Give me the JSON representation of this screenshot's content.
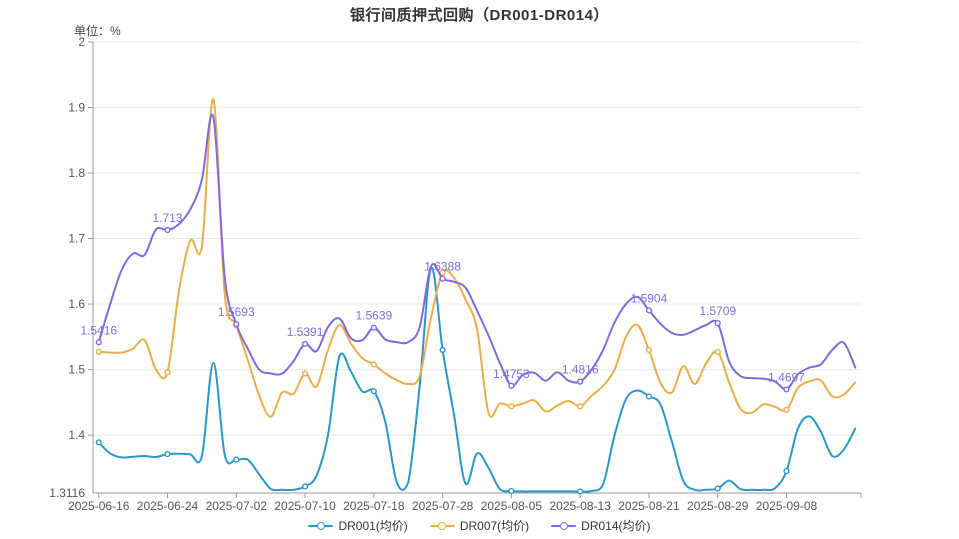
{
  "chart_data": {
    "type": "line",
    "title": "银行间质押式回购（DR001-DR014）",
    "unit": "单位：%",
    "ylim": [
      1.3116,
      2
    ],
    "y_tick_labels": [
      "2",
      "1.9",
      "1.8",
      "1.7",
      "1.6",
      "1.5",
      "1.4"
    ],
    "y_tick_values": [
      2,
      1.9,
      1.8,
      1.7,
      1.6,
      1.5,
      1.4
    ],
    "y_min_label": "1.3116",
    "x_tick_labels": [
      "2025-06-16",
      "2025-06-24",
      "2025-07-02",
      "2025-07-10",
      "2025-07-18",
      "2025-07-28",
      "2025-08-05",
      "2025-08-13",
      "2025-08-21",
      "2025-08-29",
      "2025-09-08"
    ],
    "x_tick_indices": [
      0,
      6,
      12,
      18,
      24,
      30,
      36,
      42,
      48,
      54,
      60
    ],
    "marker_interval": 6,
    "grid_color": "#E8E8E8",
    "axis_color": "#999999",
    "tick_text_color": "#555555",
    "label_color": "#7F6CE0",
    "legend_position": "bottom",
    "series": [
      {
        "name": "DR001(均价)",
        "color": "#2B97C8",
        "values": [
          1.389,
          1.372,
          1.366,
          1.367,
          1.368,
          1.3665,
          1.371,
          1.3715,
          1.3705,
          1.368,
          1.51,
          1.3695,
          1.3625,
          1.3625,
          1.34,
          1.318,
          1.3165,
          1.3165,
          1.3215,
          1.338,
          1.4,
          1.52,
          1.497,
          1.4665,
          1.467,
          1.42,
          1.328,
          1.328,
          1.475,
          1.655,
          1.53,
          1.43,
          1.326,
          1.372,
          1.35,
          1.3175,
          1.3145,
          1.314,
          1.314,
          1.314,
          1.314,
          1.314,
          1.314,
          1.3145,
          1.325,
          1.4,
          1.455,
          1.468,
          1.459,
          1.447,
          1.39,
          1.33,
          1.3165,
          1.3165,
          1.3185,
          1.3305,
          1.3175,
          1.3165,
          1.3165,
          1.319,
          1.345,
          1.41,
          1.4285,
          1.405,
          1.368,
          1.378,
          1.41
        ]
      },
      {
        "name": "DR007(均价)",
        "color": "#E9AE49",
        "values": [
          1.527,
          1.526,
          1.526,
          1.532,
          1.545,
          1.5,
          1.496,
          1.62,
          1.697,
          1.688,
          1.9125,
          1.615,
          1.568,
          1.515,
          1.46,
          1.428,
          1.465,
          1.463,
          1.494,
          1.474,
          1.53,
          1.568,
          1.54,
          1.517,
          1.508,
          1.494,
          1.484,
          1.478,
          1.49,
          1.58,
          1.648,
          1.64,
          1.607,
          1.562,
          1.434,
          1.448,
          1.444,
          1.448,
          1.453,
          1.436,
          1.445,
          1.452,
          1.444,
          1.46,
          1.475,
          1.5,
          1.55,
          1.568,
          1.53,
          1.48,
          1.465,
          1.505,
          1.478,
          1.51,
          1.527,
          1.48,
          1.44,
          1.434,
          1.447,
          1.443,
          1.4385,
          1.472,
          1.482,
          1.4835,
          1.459,
          1.462,
          1.4805
        ]
      },
      {
        "name": "DR014(均价)",
        "color": "#8269DE",
        "values": [
          1.5416,
          1.6,
          1.652,
          1.677,
          1.675,
          1.714,
          1.713,
          1.722,
          1.745,
          1.79,
          1.885,
          1.64,
          1.5693,
          1.532,
          1.5,
          1.494,
          1.494,
          1.513,
          1.5391,
          1.528,
          1.565,
          1.578,
          1.548,
          1.545,
          1.5639,
          1.546,
          1.542,
          1.542,
          1.565,
          1.658,
          1.6388,
          1.634,
          1.625,
          1.59,
          1.552,
          1.51,
          1.4753,
          1.492,
          1.495,
          1.483,
          1.496,
          1.483,
          1.4816,
          1.5,
          1.53,
          1.572,
          1.6,
          1.611,
          1.5904,
          1.57,
          1.556,
          1.553,
          1.56,
          1.568,
          1.5709,
          1.512,
          1.49,
          1.487,
          1.486,
          1.482,
          1.4697,
          1.493,
          1.503,
          1.508,
          1.53,
          1.541,
          1.503
        ],
        "point_labels": {
          "0": "1.5416",
          "6": "1.713",
          "12": "1.5693",
          "18": "1.5391",
          "24": "1.5639",
          "30": "1.6388",
          "36": "1.4753",
          "42": "1.4816",
          "48": "1.5904",
          "54": "1.5709",
          "60": "1.4697"
        }
      }
    ]
  }
}
